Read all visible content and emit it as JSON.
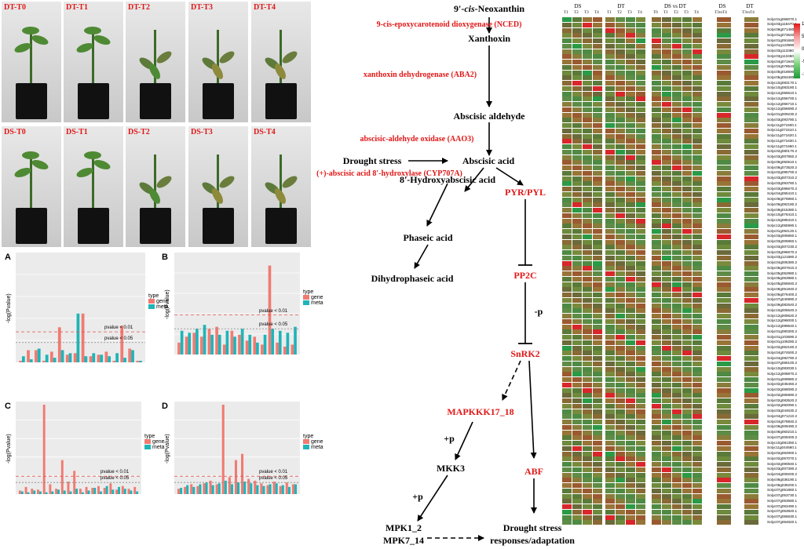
{
  "photos": {
    "top_row": [
      "DT-T0",
      "DT-T1",
      "DT-T2",
      "DT-T3",
      "DT-T4"
    ],
    "bottom_row": [
      "DS-T0",
      "DS-T1",
      "DS-T2",
      "DS-T3",
      "DS-T4"
    ]
  },
  "charts": {
    "ylabel": "-log(Pvalue)",
    "legend_title": "type",
    "legend_gene": "gene",
    "legend_meta": "meta",
    "colors": {
      "gene": "#f07b72",
      "meta": "#1fb4b8"
    },
    "threshold_01": "pvalue < 0.01",
    "threshold_05": "pvalue < 0.05"
  },
  "chart_data": [
    {
      "type": "bar",
      "panel": "A",
      "ylim": [
        0,
        7
      ],
      "series": [
        {
          "name": "gene",
          "values": [
            0.1,
            0.8,
            0.8,
            0.1,
            0.7,
            2.3,
            0.5,
            0.6,
            3.2,
            0.4,
            0.5,
            0.7,
            0.1,
            2.4,
            0.9,
            0.1
          ]
        },
        {
          "name": "meta",
          "values": [
            0.4,
            0.2,
            0.9,
            0.5,
            0.3,
            0.8,
            0.6,
            3.2,
            0.4,
            0.6,
            0.5,
            0.4,
            0.6,
            0.3,
            0.8,
            0.1
          ]
        }
      ]
    },
    {
      "type": "bar",
      "panel": "B",
      "ylim": [
        0,
        5
      ],
      "series": [
        {
          "name": "gene",
          "values": [
            0.6,
            0.9,
            1.1,
            0.9,
            1.3,
            1.4,
            0.5,
            1.2,
            1.0,
            0.7,
            0.9,
            0.5,
            4.5,
            0.6,
            0.4,
            0.5
          ]
        },
        {
          "name": "meta",
          "values": [
            1.2,
            1.1,
            1.3,
            1.5,
            1.0,
            1.0,
            1.2,
            0.9,
            1.3,
            1.0,
            0.6,
            1.0,
            1.3,
            1.2,
            1.1,
            1.4
          ]
        }
      ]
    },
    {
      "type": "bar",
      "panel": "C",
      "ylim": [
        0,
        10
      ],
      "series": [
        {
          "name": "gene",
          "values": [
            0.4,
            0.8,
            0.6,
            0.5,
            10,
            1.1,
            0.6,
            3.8,
            1.4,
            2.6,
            0.6,
            0.8,
            0.7,
            0.9,
            0.7,
            1.2,
            0.5,
            0.9,
            0.6,
            0.8
          ]
        },
        {
          "name": "meta",
          "values": [
            0.3,
            0.2,
            0.4,
            0.3,
            0.2,
            0.3,
            0.5,
            0.4,
            0.3,
            0.6,
            0.2,
            0.4,
            0.7,
            0.3,
            0.9,
            0.5,
            0.8,
            0.6,
            0.4,
            0.3
          ]
        }
      ]
    },
    {
      "type": "bar",
      "panel": "D",
      "ylim": [
        0,
        10
      ],
      "series": [
        {
          "name": "gene",
          "values": [
            0.6,
            0.8,
            1.1,
            0.9,
            1.2,
            1.5,
            1.1,
            10,
            1.9,
            3.8,
            4.5,
            1.7,
            1.5,
            1.2,
            1.0,
            1.4,
            0.9,
            1.3,
            1.1
          ]
        },
        {
          "name": "meta",
          "values": [
            0.7,
            1.0,
            0.8,
            1.1,
            1.3,
            1.0,
            1.2,
            1.5,
            1.1,
            1.3,
            1.4,
            1.2,
            1.0,
            0.9,
            1.1,
            1.2,
            1.0,
            0.8,
            1.1
          ]
        }
      ]
    }
  ],
  "pathway": {
    "n_neoxanthin_prefix": "9'-",
    "n_neoxanthin_italic": "cis",
    "n_neoxanthin_suffix": "-Neoxanthin",
    "e_nced": "9-cis-epoxycarotenoid dioxygenase (NCED)",
    "n_xanthoxin": "Xanthoxin",
    "e_aba2": "xanthoxin dehydrogenase (ABA2)",
    "n_abscisic_aldehyde": "Abscisic aldehyde",
    "e_aao3": "abscisic-aldehyde oxidase (AAO3)",
    "n_drought_stress": "Drought stress",
    "n_abscisic_acid": "Abscisic acid",
    "e_cyp707a": "(+)-abscisic acid 8'-hydroxylase (CYP707A)",
    "n_hydroxyaba": "8'-Hydroxyabscisic acid",
    "n_phaseic": "Phaseic acid",
    "n_dihydrophaseic": "Dihydrophaseic acid",
    "n_pyr": "PYR/PYL",
    "n_pp2c": "PP2C",
    "l_minus_p": "-p",
    "n_snrk2": "SnRK2",
    "n_mapkkk": "MAPKKK17_18",
    "l_plus_p1": "+p",
    "n_mkk3": "MKK3",
    "l_plus_p2": "+p",
    "n_abf": "ABF",
    "n_mpk1": "MPK1_2",
    "n_mpk7": "MPK7_14",
    "n_response1": "Drought stress",
    "n_response2": "responses/adaptation"
  },
  "heatmap": {
    "group_headers": [
      "DS",
      "DT",
      "DS vs DT",
      "DS",
      "DT"
    ],
    "col_labels_ds": [
      "T1",
      "T2",
      "T3",
      "T4"
    ],
    "col_labels_dt": [
      "T1",
      "T2",
      "T3",
      "T4"
    ],
    "col_labels_vs": [
      "T0",
      "T1",
      "T2",
      "T3",
      "T4"
    ],
    "col_labels_extra": [
      "T3vsT4",
      "T3vsT4"
    ],
    "colorbar_ticks": [
      "11",
      "5.5",
      "0",
      "-5.5",
      "-11"
    ],
    "gene_ids": [
      "Solyc01g056070.1",
      "Solyc03g118470.1",
      "Solyc06g071480.2",
      "Solyc01g073640.2",
      "Solyc01g091660.2",
      "Solyc01g123990.2",
      "Solyc03g113360.1",
      "Solyc03g113460.1",
      "Solyc04g071940.2",
      "Solyc04g078540.1",
      "Solyc05g018690.2",
      "Solyc05g053480.1",
      "Solyc10g083170.1",
      "Solyc10g083180.1",
      "Solyc12g056610.1",
      "Solyc12g056700.1",
      "Solyc12g056710.1",
      "Solyc12g056690.2",
      "Solyc01g009230.2",
      "Solyc03g093780.1",
      "Solyc11g071500.1",
      "Solyc11g071510.1",
      "Solyc11g071620.1",
      "Solyc11g071630.1",
      "Solyc11g071660.1",
      "Solyc02g080170.2",
      "Solyc03g007850.2",
      "Solyc05g050610.1",
      "Solyc06g073520.2",
      "Solyc02g095700.2",
      "Solyc03g007310.2",
      "Solyc03g093780.1",
      "Solyc03g096670.2",
      "Solyc04g065410.1",
      "Solyc06g076960.1",
      "Solyc06g082180.2",
      "Solyc09g015380.1",
      "Solyc10g076410.1",
      "Solyc10g085310.1",
      "Solyc12g055990.1",
      "Solyc01g094120.1",
      "Solyc03g006950.1",
      "Solyc03g006960.1",
      "Solyc03g007230.2",
      "Solyc03g096670.2",
      "Solyc03g121880.2",
      "Solyc04g005380.2",
      "Solyc05g007610.2",
      "Solyc05g052980.1",
      "Solyc05g053980.1",
      "Solyc05g055840.2",
      "Solyc06g051940.2",
      "Solyc06g076400.2",
      "Solyc07g040990.2",
      "Solyc09g082640.2",
      "Solyc10g005640.2",
      "Solyc12g008620.2",
      "Solyc12g096000.1",
      "Solyc12g099640.1",
      "Solyc01g080300.2",
      "Solyc01g103690.2",
      "Solyc01g108280.2",
      "Solyc02g062160.2",
      "Solyc04g074500.2",
      "Solyc04g082780.2",
      "Solyc07g066100.2",
      "Solyc10g083030.1",
      "Solyc12g008870.2",
      "Solyc01g008980.2",
      "Solyc02g036450.2",
      "Solyc02g068090.2",
      "Solyc02g065990.2",
      "Solyc02g083520.2",
      "Solyc02g092090.1",
      "Solyc03g044630.2",
      "Solyc04g071210.2",
      "Solyc04g078840.2",
      "Solyc06g009490.2",
      "Solyc06g050210.1",
      "Solyc07g009400.2",
      "Solyc10g081350.1",
      "Solyc11g044560.1",
      "Solyc02g064900.1",
      "Solyc02g067070.1",
      "Solyc02g090840.1",
      "Solyc03g007390.2",
      "Solyc04g009200.2",
      "Solyc06g036190.1",
      "Solyc06g036200.1",
      "Solyc07g051860.1",
      "Solyc07g053730.1",
      "Solyc07g053580.1",
      "Solyc07g053490.1",
      "Solyc07g053920.1",
      "Solyc07g056630.1",
      "Solyc07g064820.1"
    ]
  }
}
